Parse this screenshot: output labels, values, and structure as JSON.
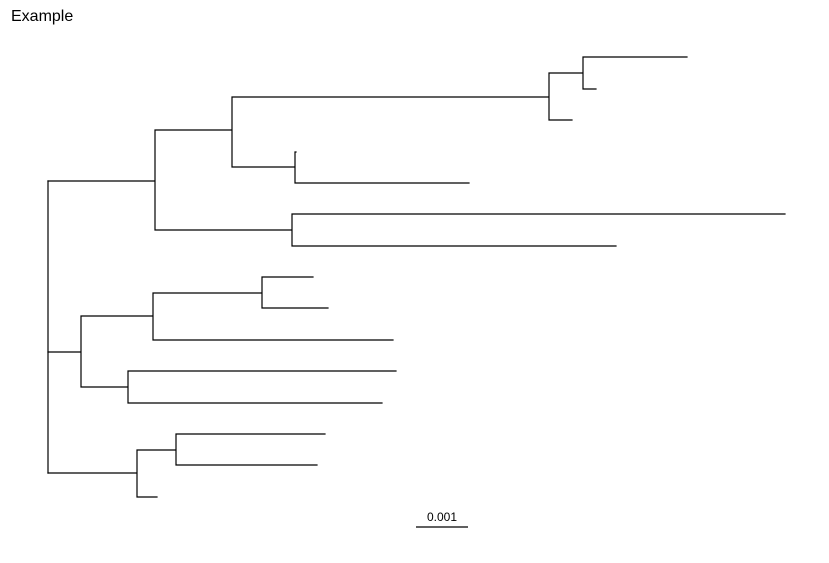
{
  "title": "Example",
  "scale_bar": {
    "label": "0.001"
  }
}
